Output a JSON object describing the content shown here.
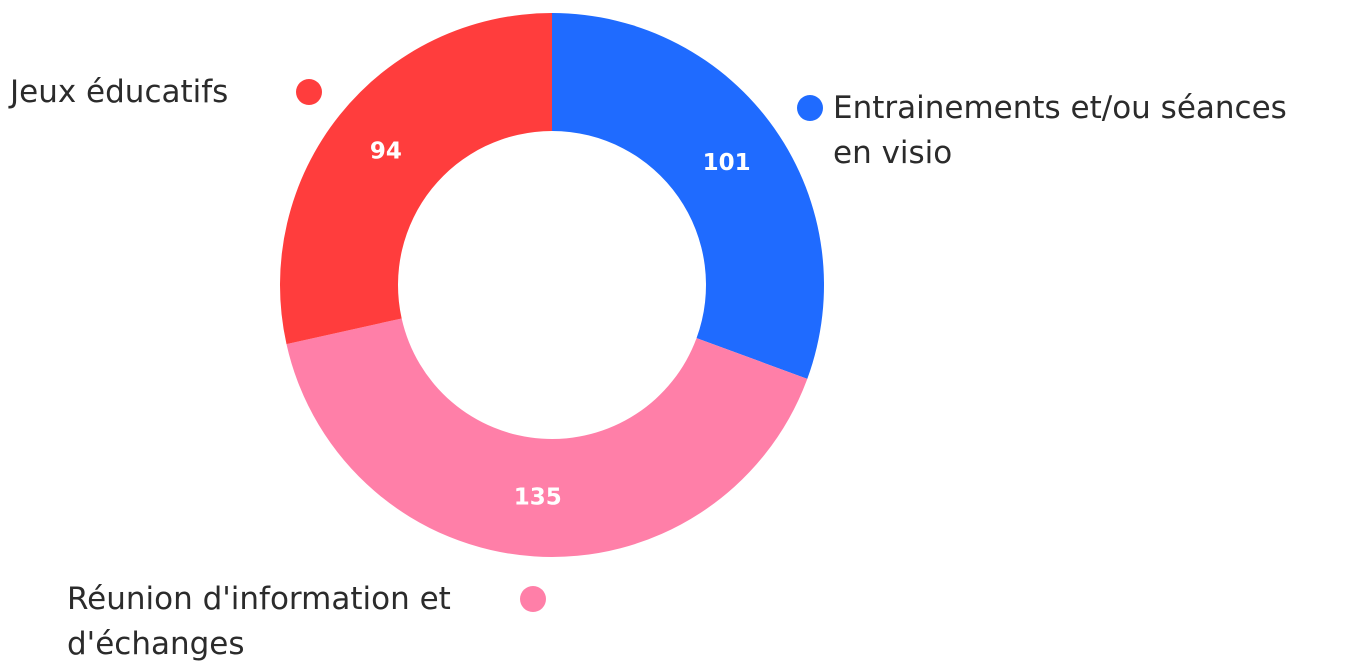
{
  "chart_data": {
    "type": "pie",
    "donut": true,
    "title": "",
    "slices": [
      {
        "label": "Entrainements et/ou séances en visio",
        "label_lines": [
          "Entrainements et/ou séances",
          "en visio"
        ],
        "value": 101,
        "value_label": "101",
        "color": "#1f6bff"
      },
      {
        "label": "Réunion d'information et d'échanges",
        "label_lines": [
          "Réunion d'information et",
          "d'échanges"
        ],
        "value": 135,
        "value_label": "135",
        "color": "#ff7fa8"
      },
      {
        "label": "Jeux éducatifs",
        "label_lines": [
          "Jeux éducatifs"
        ],
        "value": 94,
        "value_label": "94",
        "color": "#ff3d3d"
      }
    ],
    "start_angle_deg": 0,
    "direction": "clockwise"
  }
}
